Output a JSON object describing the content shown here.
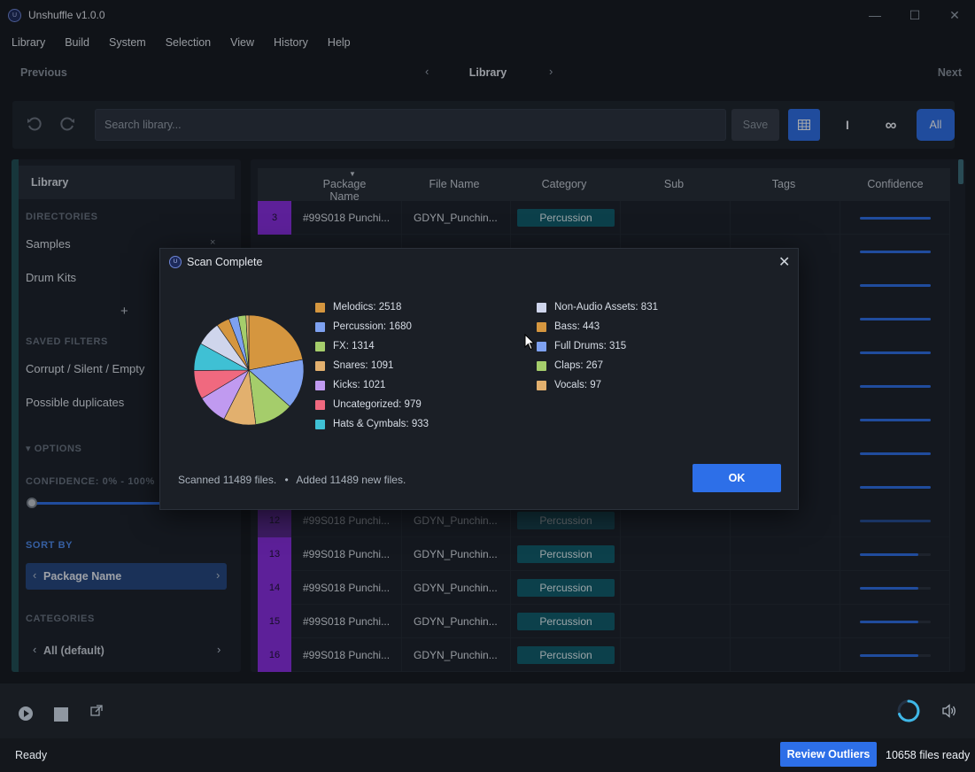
{
  "app": {
    "title": "Unshuffle v1.0.0",
    "logo_text": "U"
  },
  "window_controls": {
    "minimize": "—",
    "maximize": "☐",
    "close": "✕"
  },
  "menu": [
    "Library",
    "Build",
    "System",
    "Selection",
    "View",
    "History",
    "Help"
  ],
  "nav": {
    "previous": "Previous",
    "title": "Library",
    "next": "Next",
    "left_arrow": "‹",
    "right_arrow": "›"
  },
  "toolbar": {
    "search_placeholder": "Search library...",
    "save_label": "Save",
    "single_glyph": "I",
    "infinity_glyph": "∞",
    "all_label": "All",
    "undo_icon": "undo-icon",
    "redo_icon": "redo-icon"
  },
  "sidebar": {
    "header": "Library",
    "directories_label": "DIRECTORIES",
    "directories": [
      "Samples",
      "Drum Kits"
    ],
    "close_glyph": "×",
    "add_glyph": "+",
    "saved_filters_label": "SAVED FILTERS",
    "saved_filters": [
      "Corrupt / Silent / Empty",
      "Possible duplicates"
    ],
    "options_label": "▾ OPTIONS",
    "confidence_label": "CONFIDENCE: 0% - 100%",
    "sort_by_label": "SORT BY",
    "sort_value": "Package Name",
    "categories_label": "CATEGORIES",
    "category_value": "All (default)",
    "chev_left": "‹",
    "chev_right": "›"
  },
  "table": {
    "columns": [
      "Package Name",
      "File Name",
      "Category",
      "Sub",
      "Tags",
      "Confidence"
    ],
    "sort_caret": "▼",
    "rows": [
      {
        "num": "3",
        "package": "#99S018 Punchi...",
        "file": "GDYN_Punchin...",
        "category": "Percussion",
        "confidence": 1.0
      },
      {
        "num": "12",
        "package": "#99S018 Punchi...",
        "file": "GDYN_Punchin...",
        "category": "Percussion",
        "confidence": 1.0
      },
      {
        "num": "13",
        "package": "#99S018 Punchi...",
        "file": "GDYN_Punchin...",
        "category": "Percussion",
        "confidence": 0.82
      },
      {
        "num": "14",
        "package": "#99S018 Punchi...",
        "file": "GDYN_Punchin...",
        "category": "Percussion",
        "confidence": 0.82
      },
      {
        "num": "15",
        "package": "#99S018 Punchi...",
        "file": "GDYN_Punchin...",
        "category": "Percussion",
        "confidence": 0.82
      },
      {
        "num": "16",
        "package": "#99S018 Punchi...",
        "file": "GDYN_Punchin...",
        "category": "Percussion",
        "confidence": 0.82
      }
    ],
    "hidden_confidences": [
      1.0,
      1.0,
      1.0,
      1.0,
      1.0,
      1.0,
      1.0,
      1.0
    ]
  },
  "dialog": {
    "title": "Scan Complete",
    "close_glyph": "✕",
    "legend": [
      {
        "label": "Melodics: 2518",
        "value": 2518,
        "color": "#d5963f"
      },
      {
        "label": "Percussion: 1680",
        "value": 1680,
        "color": "#7ea1f0"
      },
      {
        "label": "FX: 1314",
        "value": 1314,
        "color": "#a5cd6b"
      },
      {
        "label": "Snares: 1091",
        "value": 1091,
        "color": "#e2b06e"
      },
      {
        "label": "Kicks: 1021",
        "value": 1021,
        "color": "#c09af0"
      },
      {
        "label": "Uncategorized: 979",
        "value": 979,
        "color": "#f0697f"
      },
      {
        "label": "Hats & Cymbals: 933",
        "value": 933,
        "color": "#3fc0d4"
      },
      {
        "label": "Non-Audio Assets: 831",
        "value": 831,
        "color": "#cfd5ec"
      },
      {
        "label": "Bass: 443",
        "value": 443,
        "color": "#d5963f"
      },
      {
        "label": "Full Drums: 315",
        "value": 315,
        "color": "#7ea1f0"
      },
      {
        "label": "Claps: 267",
        "value": 267,
        "color": "#a5cd6b"
      },
      {
        "label": "Vocals: 97",
        "value": 97,
        "color": "#e2b06e"
      }
    ],
    "summary_scanned": "Scanned 11489 files.",
    "summary_sep": "•",
    "summary_added": "Added 11489 new files.",
    "ok_label": "OK"
  },
  "chart_data": {
    "type": "pie",
    "categories": [
      "Melodics",
      "Percussion",
      "FX",
      "Snares",
      "Kicks",
      "Uncategorized",
      "Hats & Cymbals",
      "Non-Audio Assets",
      "Bass",
      "Full Drums",
      "Claps",
      "Vocals"
    ],
    "values": [
      2518,
      1680,
      1314,
      1091,
      1021,
      979,
      933,
      831,
      443,
      315,
      267,
      97
    ],
    "legend": "right"
  },
  "status": {
    "text": "Ready",
    "review_label": "Review Outliers",
    "files_ready": "10658 files ready"
  },
  "colors": {
    "accent": "#2d6fe8",
    "rownum": "#8a2be2",
    "pill": "#0f5d6b"
  }
}
